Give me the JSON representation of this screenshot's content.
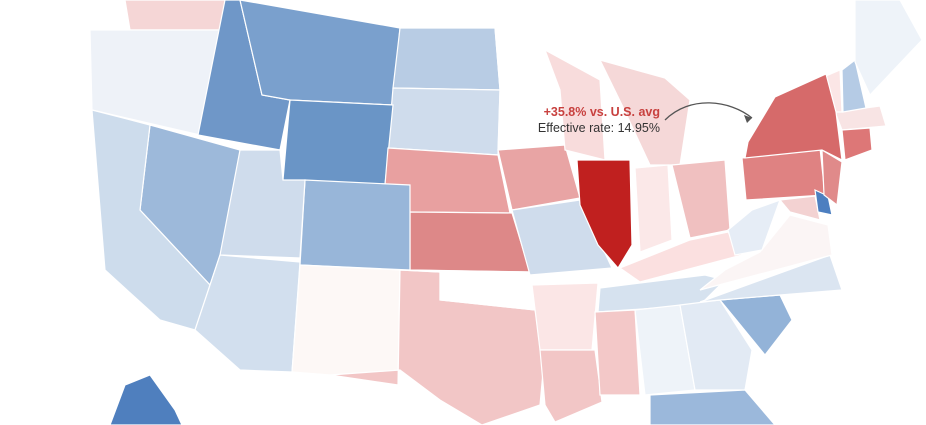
{
  "map": {
    "highlight": {
      "state": "New York",
      "delta_label": "+35.8% vs. U.S. avg",
      "rate_label": "Effective rate: 14.95%",
      "outline_color": "#1f3f8a"
    },
    "states": {
      "WA": {
        "name": "Washington",
        "color": "#f5d6d6"
      },
      "OR": {
        "name": "Oregon",
        "color": "#eef2f8"
      },
      "ID": {
        "name": "Idaho",
        "color": "#6f97c8"
      },
      "MT": {
        "name": "Montana",
        "color": "#7aa0cd"
      },
      "ND": {
        "name": "North Dakota",
        "color": "#b8cce4"
      },
      "SD": {
        "name": "South Dakota",
        "color": "#cfdcec"
      },
      "WY": {
        "name": "Wyoming",
        "color": "#6a95c6"
      },
      "NE": {
        "name": "Nebraska",
        "color": "#e8a0a0"
      },
      "KS": {
        "name": "Kansas",
        "color": "#dd8888"
      },
      "CO": {
        "name": "Colorado",
        "color": "#98b6d9"
      },
      "UT": {
        "name": "Utah",
        "color": "#cfdcec"
      },
      "NV": {
        "name": "Nevada",
        "color": "#9db9da"
      },
      "CA": {
        "name": "California",
        "color": "#cddcec"
      },
      "AZ": {
        "name": "Arizona",
        "color": "#d2dfee"
      },
      "NM": {
        "name": "New Mexico",
        "color": "#fdf8f6"
      },
      "TX": {
        "name": "Texas",
        "color": "#f2c6c6"
      },
      "OK": {
        "name": "Oklahoma",
        "color": "#ffffff"
      },
      "MN": {
        "name": "Minnesota",
        "color": "#ffffff"
      },
      "IA": {
        "name": "Iowa",
        "color": "#e8a4a4"
      },
      "MO": {
        "name": "Missouri",
        "color": "#cfdcec"
      },
      "AR": {
        "name": "Arkansas",
        "color": "#fbe6e6"
      },
      "LA": {
        "name": "Louisiana",
        "color": "#f2c6c6"
      },
      "WI": {
        "name": "Wisconsin",
        "color": "#f8dcdc"
      },
      "IL": {
        "name": "Illinois",
        "color": "#c0201f"
      },
      "MI": {
        "name": "Michigan",
        "color": "#f5d8d8"
      },
      "IN": {
        "name": "Indiana",
        "color": "#fbe8e8"
      },
      "OH": {
        "name": "Ohio",
        "color": "#f0c0c0"
      },
      "KY": {
        "name": "Kentucky",
        "color": "#fbe0e0"
      },
      "TN": {
        "name": "Tennessee",
        "color": "#d6e2ef"
      },
      "MS": {
        "name": "Mississippi",
        "color": "#f3c8c8"
      },
      "AL": {
        "name": "Alabama",
        "color": "#eef3f9"
      },
      "GA": {
        "name": "Georgia",
        "color": "#e2eaf4"
      },
      "FL": {
        "name": "Florida",
        "color": "#9bb8db"
      },
      "SC": {
        "name": "South Carolina",
        "color": "#93b3d8"
      },
      "NC": {
        "name": "North Carolina",
        "color": "#dbe5f1"
      },
      "VA": {
        "name": "Virginia",
        "color": "#fbf5f5"
      },
      "WV": {
        "name": "West Virginia",
        "color": "#e6edf6"
      },
      "PA": {
        "name": "Pennsylvania",
        "color": "#df8282"
      },
      "NY": {
        "name": "New York",
        "color": "#d66a6a"
      },
      "NJ": {
        "name": "New Jersey",
        "color": "#e08a8a"
      },
      "DE": {
        "name": "Delaware",
        "color": "#4d7fc0"
      },
      "MD": {
        "name": "Maryland",
        "color": "#f3d2d2"
      },
      "CT": {
        "name": "Connecticut",
        "color": "#dd7777"
      },
      "MA": {
        "name": "Massachusetts",
        "color": "#f8e4e4"
      },
      "VT": {
        "name": "Vermont",
        "color": "#fbe6e6"
      },
      "NH": {
        "name": "New Hampshire",
        "color": "#b5cbe5"
      },
      "ME": {
        "name": "Maine",
        "color": "#eef3f9"
      },
      "AK": {
        "name": "Alaska",
        "color": "#4f7fbe"
      }
    }
  }
}
